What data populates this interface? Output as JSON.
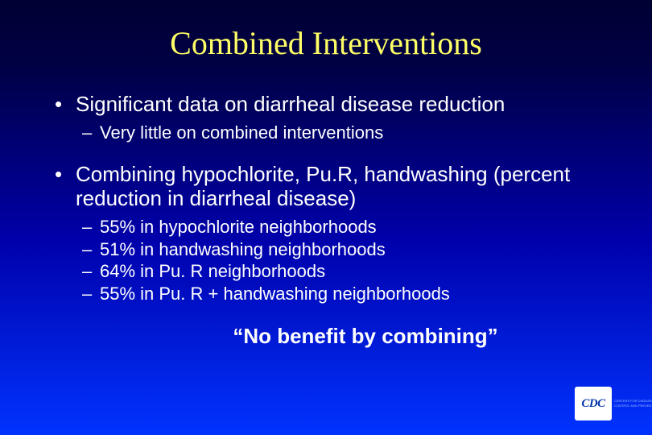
{
  "slide": {
    "title": "Combined Interventions",
    "title_color": "#ffff66",
    "text_color": "#ffffff",
    "background_gradient": [
      "#000033",
      "#000044",
      "#0000aa",
      "#0033ff"
    ],
    "bullets": [
      {
        "text": "Significant data on diarrheal disease reduction",
        "sub": [
          "Very little on combined interventions"
        ]
      },
      {
        "text": "Combining hypochlorite, Pu.R, handwashing (percent reduction in diarrheal disease)",
        "sub": [
          "55% in hypochlorite neighborhoods",
          "51% in handwashing neighborhoods",
          "64% in Pu. R neighborhoods",
          "55% in Pu. R + handwashing neighborhoods"
        ]
      }
    ],
    "conclusion": "“No benefit by combining”",
    "bullet_char": "•",
    "dash_char": "–"
  },
  "logo": {
    "acronym": "CDC",
    "lines": [
      "CENTERS FOR DISEASE",
      "CONTROL AND PREVENTION"
    ]
  }
}
